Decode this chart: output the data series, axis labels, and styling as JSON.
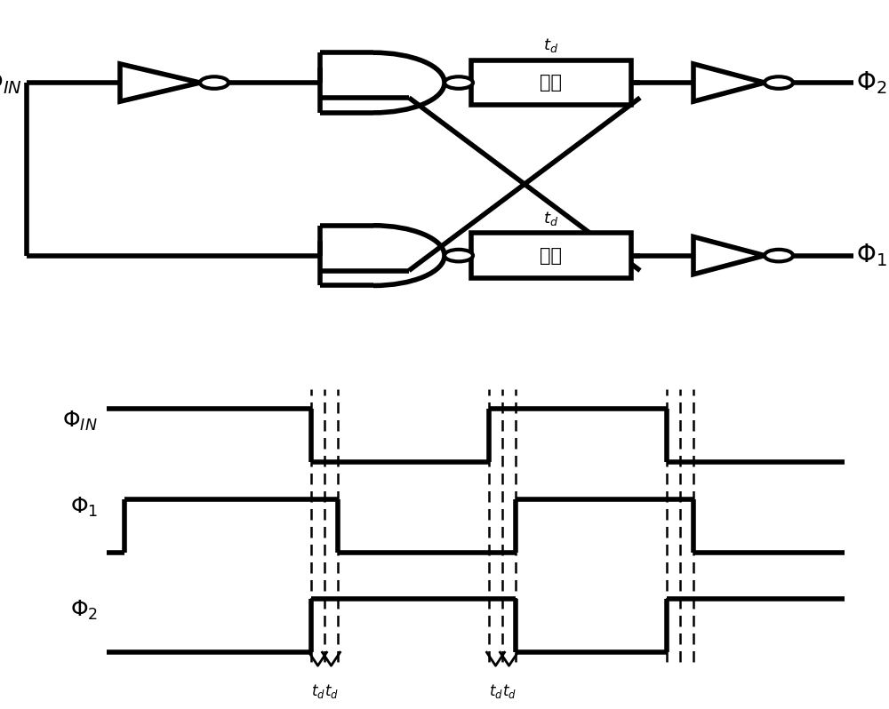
{
  "bg_color": "#ffffff",
  "line_color": "#000000",
  "lw": 4.0,
  "lw_thin": 1.8,
  "fig_width": 10.0,
  "fig_height": 7.98,
  "phi_in_label": "$\\Phi_{IN}$",
  "phi1_label": "$\\Phi_1$",
  "phi2_label": "$\\Phi_2$",
  "delay_cn": "延追",
  "td_label": "$t_d$"
}
